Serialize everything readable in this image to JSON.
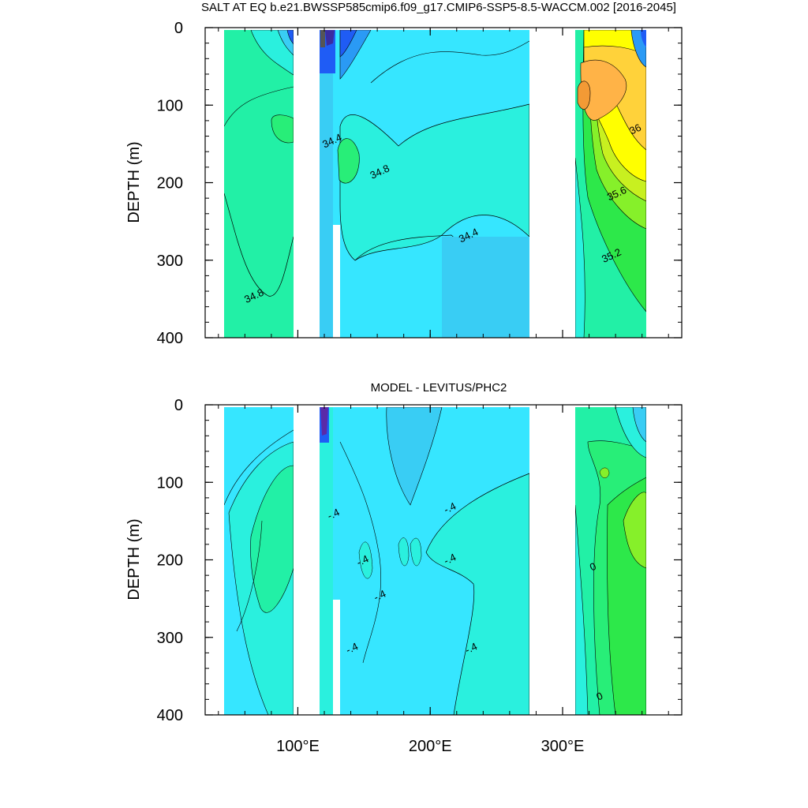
{
  "chart_data": [
    {
      "type": "heatmap",
      "title": "SALT AT EQ b.e21.BWSSP585cmip6.f09_g17.CMIP6-SSP5-8.5-WACCM.002 [2016-2045]",
      "xlabel": "",
      "ylabel": "DEPTH (m)",
      "xlim": [
        30,
        390
      ],
      "ylim": [
        400,
        0
      ],
      "x_ticks": [
        100,
        200,
        300
      ],
      "x_tick_labels": [
        "100°E",
        "200°E",
        "300°E"
      ],
      "y_ticks": [
        0,
        100,
        200,
        300,
        400
      ],
      "y_tick_labels": [
        "0",
        "100",
        "200",
        "300",
        "400"
      ],
      "land_gaps_lon": [
        [
          98,
          118
        ],
        [
          127,
          131
        ],
        [
          279,
          315
        ]
      ],
      "ocean_segments_lon": [
        [
          45,
          98
        ],
        [
          118,
          127
        ],
        [
          131,
          279
        ],
        [
          315,
          370
        ]
      ],
      "contour_labels": [
        {
          "text": "34.8",
          "lon": 68,
          "depth": 350
        },
        {
          "text": "34.4",
          "lon": 127,
          "depth": 150
        },
        {
          "text": "34.8",
          "lon": 163,
          "depth": 190
        },
        {
          "text": "34.4",
          "lon": 230,
          "depth": 272
        },
        {
          "text": "36",
          "lon": 356,
          "depth": 135
        },
        {
          "text": "35.6",
          "lon": 342,
          "depth": 218
        },
        {
          "text": "35.2",
          "lon": 338,
          "depth": 298
        }
      ],
      "colors": {
        "very_fresh": "#3a2ca0",
        "fresh_blue": "#1f5cf5",
        "mid_blue": "#2a9af5",
        "light_blue": "#39cdf4",
        "cyan_34_4": "#36e6ff",
        "cyan_34_6": "#2af0de",
        "green_34_8": "#22f0a6",
        "green_35": "#28ee78",
        "green_35_2": "#2de84a",
        "lime_35_4": "#86f02a",
        "yellow_green": "#c8f020",
        "yellow_35_8": "#ffff00",
        "gold_36": "#ffd23a",
        "orange_36_2": "#ffb347",
        "dark_orange": "#f39a35"
      }
    },
    {
      "type": "heatmap",
      "title": "MODEL - LEVITUS/PHC2",
      "xlabel": "",
      "ylabel": "DEPTH (m)",
      "xlim": [
        30,
        390
      ],
      "ylim": [
        400,
        0
      ],
      "x_ticks": [
        100,
        200,
        300
      ],
      "x_tick_labels": [
        "100°E",
        "200°E",
        "300°E"
      ],
      "y_ticks": [
        0,
        100,
        200,
        300,
        400
      ],
      "y_tick_labels": [
        "0",
        "100",
        "200",
        "300",
        "400"
      ],
      "land_gaps_lon": [
        [
          98,
          118
        ],
        [
          127,
          131
        ],
        [
          279,
          315
        ]
      ],
      "ocean_segments_lon": [
        [
          45,
          98
        ],
        [
          118,
          127
        ],
        [
          131,
          279
        ],
        [
          315,
          370
        ]
      ],
      "contour_labels": [
        {
          "text": "-.4",
          "lon": 128,
          "depth": 145
        },
        {
          "text": "-.4",
          "lon": 150,
          "depth": 205
        },
        {
          "text": "-.4",
          "lon": 163,
          "depth": 250
        },
        {
          "text": "-.4",
          "lon": 142,
          "depth": 318
        },
        {
          "text": "-.4",
          "lon": 216,
          "depth": 137
        },
        {
          "text": "-.4",
          "lon": 216,
          "depth": 203
        },
        {
          "text": "-.4",
          "lon": 232,
          "depth": 318
        },
        {
          "text": "0",
          "lon": 324,
          "depth": 213
        },
        {
          "text": "0",
          "lon": 329,
          "depth": 380
        }
      ],
      "colors": {
        "strong_negative": "#5a2aa8",
        "negative_blue": "#1f5cf5",
        "light_blue": "#39cdf4",
        "cyan_neg_0_4": "#36e6ff",
        "aqua_neg_0_2": "#2af0de",
        "green_zero": "#22f0a6",
        "green_pos": "#28ee78",
        "green_pos_2": "#2de84a",
        "lime_pos": "#86f02a"
      }
    }
  ]
}
